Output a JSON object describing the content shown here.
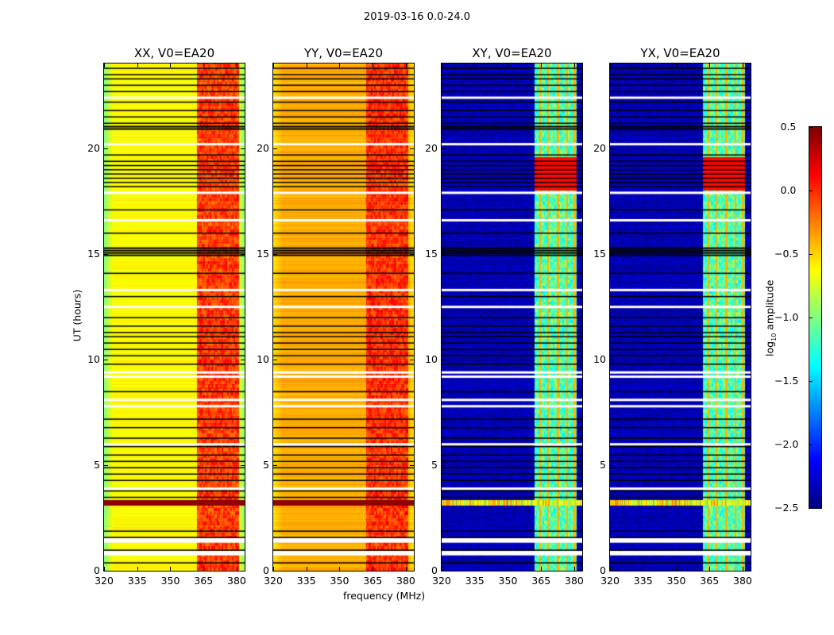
{
  "chart_data": {
    "type": "heatmap",
    "title": "2019-03-16 0.0-24.0",
    "xlabel": "frequency (MHz)",
    "ylabel": "UT (hours)",
    "xlim": [
      320,
      383.6
    ],
    "ylim": [
      0,
      24
    ],
    "xticks": [
      320,
      335,
      350,
      365,
      380
    ],
    "yticks": [
      0,
      5,
      10,
      15,
      20
    ],
    "panels": [
      {
        "title": "XX, V0=EA20",
        "base": -0.62,
        "band": -0.05,
        "edge": -0.35,
        "kind": "auto"
      },
      {
        "title": "YY, V0=EA20",
        "base": -0.38,
        "band": -0.02,
        "edge": -0.15,
        "kind": "auto"
      },
      {
        "title": "XY, V0=EA20",
        "base": -2.35,
        "band": -1.15,
        "edge": 0,
        "kind": "cross"
      },
      {
        "title": "YX, V0=EA20",
        "base": -2.35,
        "band": -1.15,
        "edge": 0,
        "kind": "cross"
      }
    ],
    "rfi_band_mhz": [
      362,
      381
    ],
    "rfi_event_ut": [
      3.1,
      3.35
    ],
    "flagged_rows_ut": [
      23.8,
      23.5,
      23.3,
      23.0,
      22.7,
      22.2,
      21.8,
      21.5,
      21.2,
      19.7,
      19.4,
      19.2,
      19.0,
      18.8,
      18.6,
      18.4,
      18.2,
      17.1,
      16.0,
      14.1,
      13.0,
      12.0,
      11.6,
      11.3,
      11.1,
      10.8,
      10.5,
      10.2,
      9.8,
      8.5,
      7.2,
      6.8,
      6.3,
      5.9,
      5.5,
      5.2,
      4.9,
      4.6,
      4.3,
      3.8,
      3.5,
      1.9,
      1.6,
      1.0,
      0.4
    ],
    "flagged_blocks_ut": [
      [
        20.85,
        21.05
      ],
      [
        14.85,
        15.3
      ]
    ],
    "blank_rows_ut": [
      22.4,
      20.2,
      17.9,
      16.6,
      13.3,
      12.5,
      9.4,
      9.2,
      8.1,
      7.8,
      6.0,
      3.9,
      1.5,
      1.4,
      0.9,
      0.8
    ],
    "colorbar": {
      "label": "log10 amplitude",
      "label_main": "log",
      "label_sub": "10",
      "label_rest": " amplitude",
      "range": [
        -2.5,
        0.5
      ],
      "ticks": [
        "0.5",
        "0.0",
        "−0.5",
        "−1.0",
        "−1.5",
        "−2.0",
        "−2.5"
      ],
      "tick_values": [
        0.5,
        0,
        -0.5,
        -1,
        -1.5,
        -2,
        -2.5
      ],
      "colormap": "jet"
    }
  }
}
